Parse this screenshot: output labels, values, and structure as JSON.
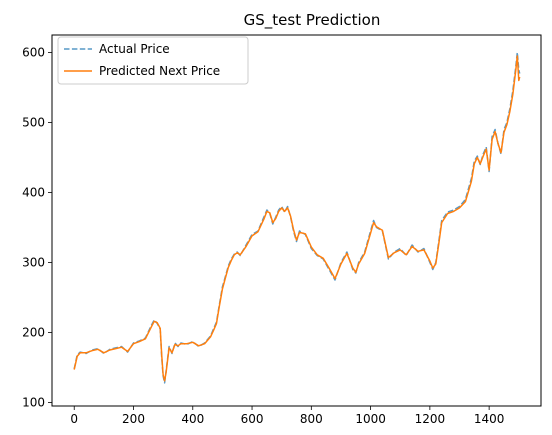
{
  "chart_data": {
    "type": "line",
    "title": "GS_test Prediction",
    "xlabel": "",
    "ylabel": "",
    "xlim": [
      -75,
      1575
    ],
    "ylim": [
      95,
      625
    ],
    "xticks": [
      0,
      200,
      400,
      600,
      800,
      1000,
      1200,
      1400
    ],
    "yticks": [
      100,
      200,
      300,
      400,
      500,
      600
    ],
    "legend_position": "top-left",
    "grid": false,
    "series": [
      {
        "name": "Actual Price",
        "color": "#1f77b4",
        "style": "dashed",
        "x": [
          0,
          10,
          20,
          40,
          60,
          80,
          100,
          120,
          140,
          160,
          180,
          200,
          220,
          240,
          260,
          270,
          280,
          290,
          295,
          300,
          305,
          310,
          320,
          330,
          340,
          350,
          360,
          380,
          400,
          420,
          440,
          460,
          470,
          480,
          490,
          500,
          510,
          520,
          530,
          540,
          550,
          560,
          580,
          600,
          620,
          640,
          650,
          660,
          670,
          680,
          690,
          700,
          710,
          720,
          730,
          740,
          750,
          760,
          780,
          800,
          820,
          840,
          860,
          880,
          900,
          920,
          940,
          950,
          960,
          980,
          1000,
          1010,
          1020,
          1040,
          1060,
          1080,
          1100,
          1120,
          1140,
          1160,
          1180,
          1200,
          1210,
          1220,
          1230,
          1240,
          1260,
          1280,
          1300,
          1320,
          1340,
          1350,
          1360,
          1370,
          1380,
          1390,
          1400,
          1410,
          1420,
          1430,
          1440,
          1450,
          1460,
          1470,
          1480,
          1490,
          1495,
          1500,
          1503
        ],
        "values": [
          148,
          168,
          172,
          170,
          175,
          177,
          170,
          176,
          178,
          180,
          172,
          185,
          188,
          192,
          210,
          218,
          213,
          205,
          165,
          138,
          128,
          145,
          180,
          170,
          185,
          180,
          185,
          183,
          187,
          180,
          185,
          195,
          205,
          215,
          240,
          265,
          280,
          295,
          305,
          312,
          315,
          310,
          325,
          340,
          345,
          365,
          375,
          370,
          355,
          365,
          375,
          380,
          372,
          380,
          365,
          345,
          330,
          345,
          340,
          320,
          310,
          305,
          290,
          275,
          300,
          315,
          290,
          285,
          300,
          315,
          345,
          360,
          350,
          345,
          305,
          315,
          320,
          310,
          325,
          315,
          320,
          300,
          290,
          300,
          330,
          360,
          372,
          375,
          380,
          390,
          420,
          445,
          452,
          440,
          455,
          465,
          430,
          480,
          490,
          470,
          455,
          490,
          500,
          520,
          545,
          580,
          600,
          575,
          570
        ]
      },
      {
        "name": "Predicted Next Price",
        "color": "#ff7f0e",
        "style": "solid",
        "x": [
          0,
          10,
          20,
          40,
          60,
          80,
          100,
          120,
          140,
          160,
          180,
          200,
          220,
          240,
          260,
          270,
          280,
          290,
          295,
          300,
          305,
          310,
          320,
          330,
          340,
          350,
          360,
          380,
          400,
          420,
          440,
          460,
          470,
          480,
          490,
          500,
          510,
          520,
          530,
          540,
          550,
          560,
          580,
          600,
          620,
          640,
          650,
          660,
          670,
          680,
          690,
          700,
          710,
          720,
          730,
          740,
          750,
          760,
          780,
          800,
          820,
          840,
          860,
          880,
          900,
          920,
          940,
          950,
          960,
          980,
          1000,
          1010,
          1020,
          1040,
          1060,
          1080,
          1100,
          1120,
          1140,
          1160,
          1180,
          1200,
          1210,
          1220,
          1230,
          1240,
          1260,
          1280,
          1300,
          1320,
          1340,
          1350,
          1360,
          1370,
          1380,
          1390,
          1400,
          1410,
          1420,
          1430,
          1440,
          1450,
          1460,
          1470,
          1480,
          1490,
          1495,
          1500,
          1503
        ],
        "values": [
          147,
          166,
          171,
          171,
          174,
          176,
          171,
          175,
          177,
          179,
          173,
          184,
          187,
          191,
          208,
          216,
          214,
          206,
          168,
          140,
          131,
          143,
          178,
          171,
          183,
          181,
          184,
          184,
          186,
          181,
          184,
          194,
          203,
          213,
          238,
          262,
          278,
          293,
          303,
          311,
          314,
          311,
          323,
          338,
          344,
          362,
          373,
          371,
          357,
          363,
          373,
          378,
          373,
          378,
          366,
          347,
          332,
          343,
          341,
          322,
          311,
          306,
          292,
          277,
          298,
          313,
          292,
          286,
          298,
          313,
          342,
          357,
          351,
          346,
          307,
          314,
          318,
          311,
          323,
          316,
          318,
          302,
          292,
          298,
          327,
          357,
          370,
          373,
          378,
          387,
          416,
          441,
          450,
          441,
          452,
          462,
          432,
          476,
          487,
          470,
          457,
          486,
          497,
          516,
          540,
          575,
          595,
          560,
          565
        ]
      }
    ]
  }
}
